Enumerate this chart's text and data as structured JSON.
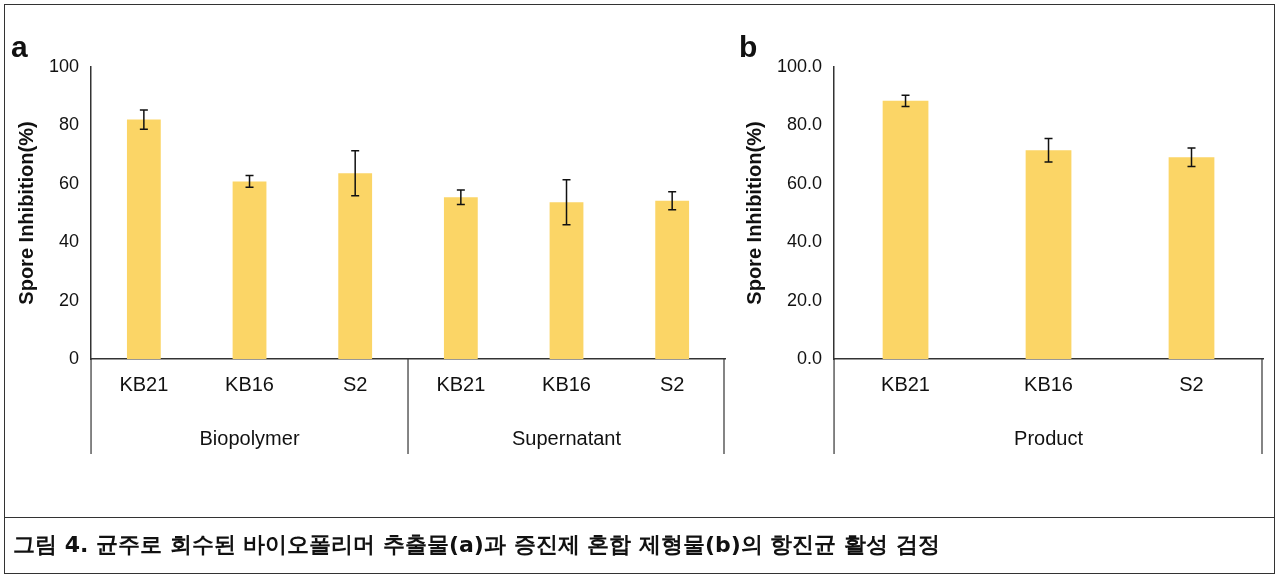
{
  "chart_data": [
    {
      "type": "bar",
      "title": "a",
      "ylabel": "Spore Inhibition(%)",
      "categories": [
        "KB21",
        "KB16",
        "S2",
        "KB21",
        "KB16",
        "S2"
      ],
      "values": [
        82.0,
        60.8,
        63.6,
        55.4,
        53.7,
        54.2
      ],
      "errors": [
        3.3,
        2.0,
        7.7,
        2.5,
        7.7,
        3.1
      ],
      "color": "#fbd566",
      "ylim": [
        0,
        100
      ],
      "yticks": [
        0,
        20,
        40,
        60,
        80,
        100
      ],
      "annotations": [
        "Biopolymer",
        "Supernatant"
      ]
    },
    {
      "type": "bar",
      "title": "b",
      "ylabel": "Spore Inhibition(%)",
      "categories": [
        "KB21",
        "KB16",
        "S2"
      ],
      "values": [
        88.4,
        71.5,
        69.1
      ],
      "errors": [
        1.9,
        4.0,
        3.2
      ],
      "color": "#fbd566",
      "ylim": [
        0,
        100
      ],
      "yticks": [
        {
          "value": 0,
          "label": "0.0"
        },
        {
          "value": 20,
          "label": "20.0"
        },
        {
          "value": 40,
          "label": "40.0"
        },
        {
          "value": 60,
          "label": "60.0"
        },
        {
          "value": 80,
          "label": "80.0"
        },
        {
          "value": 100,
          "label": "100.0"
        }
      ],
      "annotations": [
        "Product"
      ]
    },
    {
      "type": "other",
      "title": "그림 4. 균주로 회수된 바이오폴리머 추출물(a)과 증진제 혼합 제형물(b)의 항진균 활성 검정"
    }
  ]
}
